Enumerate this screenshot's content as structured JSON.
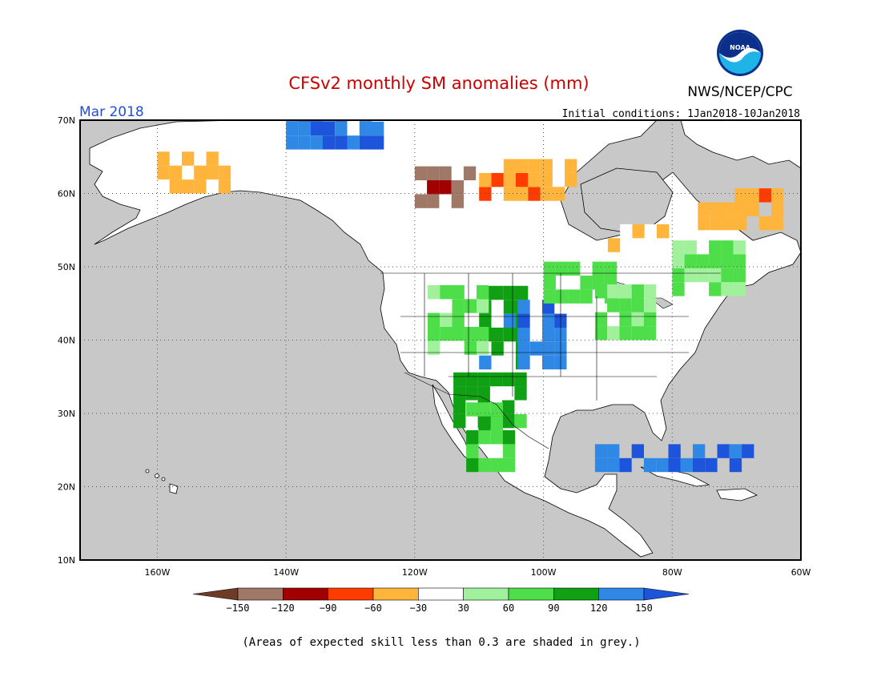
{
  "title": "CFSv2 monthly SM anomalies (mm)",
  "valid_month": "Mar 2018",
  "initial_conditions": "Initial conditions: 1Jan2018-10Jan2018",
  "agency": "NWS/NCEP/CPC",
  "logo_text": "NOAA",
  "footnote": "(Areas of expected skill less than 0.3 are shaded in grey.)",
  "colors": {
    "title": "#cc0000",
    "month": "#1f4fdc",
    "ocean_or_low_skill": "#c8c8c8",
    "land_neutral": "#ffffff",
    "coast": "#000000"
  },
  "chart_data": {
    "type": "map",
    "projection": "lat-lon",
    "lon_range": [
      -172,
      -60
    ],
    "lat_range": [
      10,
      70
    ],
    "lat_ticks": [
      {
        "value": 70,
        "label": "70N"
      },
      {
        "value": 60,
        "label": "60N"
      },
      {
        "value": 50,
        "label": "50N"
      },
      {
        "value": 40,
        "label": "40N"
      },
      {
        "value": 30,
        "label": "30N"
      },
      {
        "value": 20,
        "label": "20N"
      },
      {
        "value": 10,
        "label": "10N"
      }
    ],
    "lon_ticks": [
      {
        "value": -160,
        "label": "160W"
      },
      {
        "value": -140,
        "label": "140W"
      },
      {
        "value": -120,
        "label": "120W"
      },
      {
        "value": -100,
        "label": "100W"
      },
      {
        "value": -80,
        "label": "80W"
      },
      {
        "value": -60,
        "label": "60W"
      }
    ],
    "grid": "dotted",
    "colorbar": {
      "labels": [
        "−150",
        "−120",
        "−90",
        "−60",
        "−30",
        "30",
        "60",
        "90",
        "120",
        "150"
      ],
      "bins": [
        {
          "range": "< -150",
          "color": "#6e3c26"
        },
        {
          "range": "-150 to -120",
          "color": "#a07868"
        },
        {
          "range": "-120 to -90",
          "color": "#a00000"
        },
        {
          "range": "-90 to -60",
          "color": "#ff3c00"
        },
        {
          "range": "-60 to -30",
          "color": "#ffb43c"
        },
        {
          "range": "-30 to 30",
          "color": "#ffffff"
        },
        {
          "range": "30 to 60",
          "color": "#a0f09c"
        },
        {
          "range": "60 to 90",
          "color": "#4ede4a"
        },
        {
          "range": "90 to 120",
          "color": "#10a014"
        },
        {
          "range": "120 to 150",
          "color": "#2f88e6"
        },
        {
          "range": "> 150",
          "color": "#1c54dc"
        }
      ]
    },
    "anomaly_regions": [
      {
        "lon": [
          -110,
          -104
        ],
        "lat": [
          36,
          46
        ],
        "value": 105
      },
      {
        "lon": [
          -104,
          -98
        ],
        "lat": [
          36,
          44
        ],
        "value": 135
      },
      {
        "lon": [
          -114,
          -104
        ],
        "lat": [
          28,
          35
        ],
        "value": 100
      },
      {
        "lon": [
          -112,
          -106
        ],
        "lat": [
          22,
          30
        ],
        "value": 80
      },
      {
        "lon": [
          -118,
          -110
        ],
        "lat": [
          38,
          46
        ],
        "value": 60
      },
      {
        "lon": [
          -100,
          -90
        ],
        "lat": [
          45,
          50
        ],
        "value": 70
      },
      {
        "lon": [
          -92,
          -84
        ],
        "lat": [
          40,
          46
        ],
        "value": 65
      },
      {
        "lon": [
          -80,
          -70
        ],
        "lat": [
          46,
          52
        ],
        "value": 60
      },
      {
        "lon": [
          -120,
          -112
        ],
        "lat": [
          58,
          63
        ],
        "value": -135
      },
      {
        "lon": [
          -110,
          -96
        ],
        "lat": [
          59,
          63
        ],
        "value": -55
      },
      {
        "lon": [
          -160,
          -150
        ],
        "lat": [
          60,
          64
        ],
        "value": -50
      },
      {
        "lon": [
          -90,
          -82
        ],
        "lat": [
          52,
          54
        ],
        "value": -45
      },
      {
        "lon": [
          -76,
          -64
        ],
        "lat": [
          55,
          59
        ],
        "value": -50
      },
      {
        "lon": [
          -140,
          -126
        ],
        "lat": [
          66,
          70
        ],
        "value": 140
      },
      {
        "lon": [
          -92,
          -68
        ],
        "lat": [
          22,
          24
        ],
        "value": 140
      }
    ]
  }
}
